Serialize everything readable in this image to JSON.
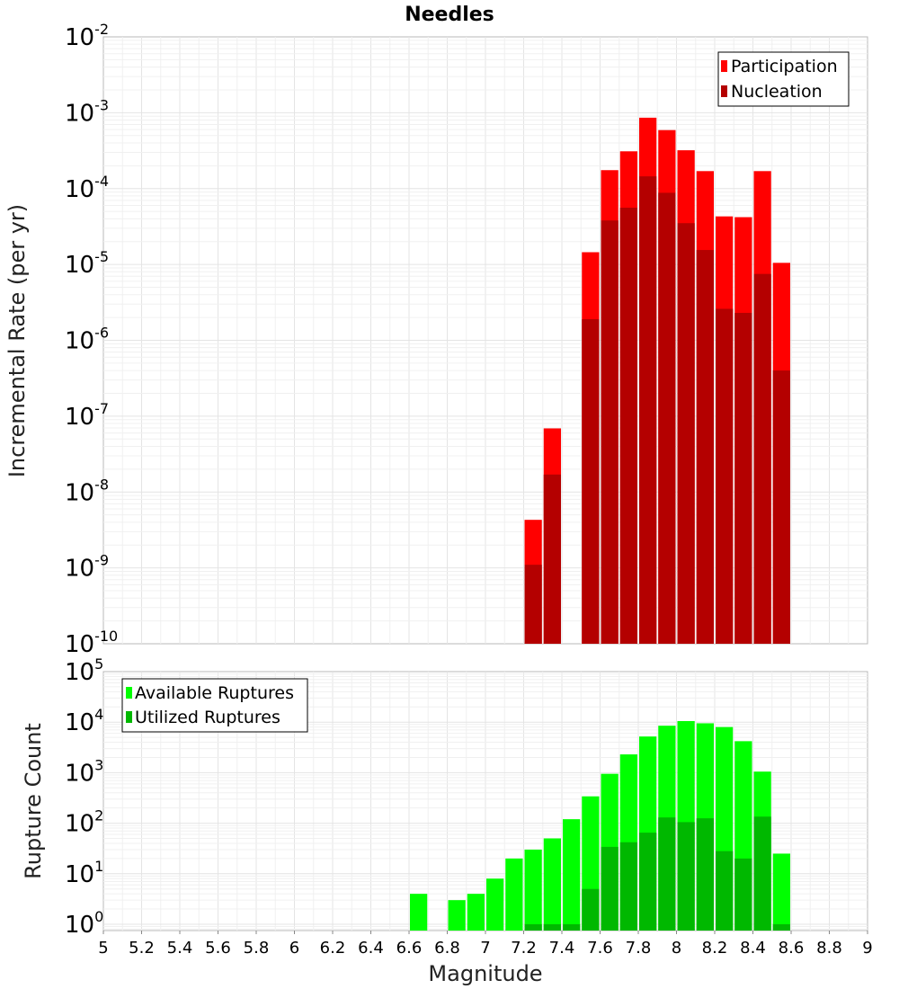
{
  "title": "Needles",
  "chart_data": [
    {
      "type": "bar",
      "ylabel": "Incremental Rate (per yr)",
      "xlabel": "",
      "yscale": "log",
      "xlim": [
        5,
        9
      ],
      "ylim": [
        1e-10,
        0.01
      ],
      "grid": true,
      "legend_position": "top-right",
      "bin_width": 0.1,
      "x": [
        7.25,
        7.35,
        7.45,
        7.55,
        7.65,
        7.75,
        7.85,
        7.95,
        8.05,
        8.15,
        8.25,
        8.35,
        8.45,
        8.55
      ],
      "series": [
        {
          "name": "Participation",
          "color": "#ff0000",
          "values": [
            4.3e-09,
            6.9e-08,
            null,
            1.45e-05,
            0.000175,
            0.00031,
            0.00086,
            0.00059,
            0.00032,
            0.00017,
            4.3e-05,
            4.2e-05,
            0.00017,
            1.05e-05
          ]
        },
        {
          "name": "Nucleation",
          "color": "#b40000",
          "values": [
            1.1e-09,
            1.7e-08,
            null,
            1.9e-06,
            3.8e-05,
            5.6e-05,
            0.000145,
            8.8e-05,
            3.5e-05,
            1.55e-05,
            2.6e-06,
            2.3e-06,
            7.5e-06,
            4e-07
          ]
        }
      ],
      "yticks": [
        "10^-10",
        "10^-9",
        "10^-8",
        "10^-7",
        "10^-6",
        "10^-5",
        "10^-4",
        "10^-3",
        "10^-2"
      ]
    },
    {
      "type": "bar",
      "ylabel": "Rupture Count",
      "xlabel": "Magnitude",
      "yscale": "log",
      "xlim": [
        5,
        9
      ],
      "ylim": [
        0.75,
        100000.0
      ],
      "grid": true,
      "legend_position": "top-left",
      "bin_width": 0.1,
      "x": [
        6.65,
        6.75,
        6.85,
        6.95,
        7.05,
        7.15,
        7.25,
        7.35,
        7.45,
        7.55,
        7.65,
        7.75,
        7.85,
        7.95,
        8.05,
        8.15,
        8.25,
        8.35,
        8.45,
        8.55
      ],
      "series": [
        {
          "name": "Available Ruptures",
          "color": "#00ff00",
          "values": [
            4,
            null,
            3,
            4,
            8,
            20,
            30,
            50,
            120,
            340,
            950,
            2300,
            5200,
            8500,
            10500,
            9500,
            8000,
            4200,
            1050,
            25
          ]
        },
        {
          "name": "Utilized Ruptures",
          "color": "#00b800",
          "values": [
            null,
            null,
            null,
            null,
            null,
            null,
            1,
            1,
            1,
            5,
            34,
            42,
            65,
            130,
            105,
            125,
            28,
            20,
            135,
            1
          ]
        }
      ],
      "yticks": [
        "10^0",
        "10^1",
        "10^2",
        "10^3",
        "10^4",
        "10^5"
      ],
      "xticks": [
        "5",
        "5.2",
        "5.4",
        "5.6",
        "5.8",
        "6",
        "6.2",
        "6.4",
        "6.6",
        "6.8",
        "7",
        "7.2",
        "7.4",
        "7.6",
        "7.8",
        "8",
        "8.2",
        "8.4",
        "8.6",
        "8.8",
        "9"
      ]
    }
  ]
}
